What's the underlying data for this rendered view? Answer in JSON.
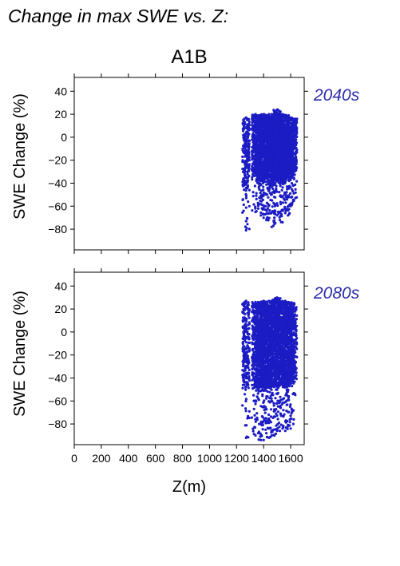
{
  "figure_title": "Change in max SWE vs. Z:",
  "scenario_title": "A1B",
  "x_axis_label": "Z(m)",
  "colors": {
    "points": "#1c1cc4",
    "tag": "#2b2baa"
  },
  "chart_data": [
    {
      "type": "scatter",
      "tag": "2040s",
      "ylabel": "SWE Change (%)",
      "xlabel": "",
      "xlim": [
        0,
        1700
      ],
      "ylim": [
        -98,
        52
      ],
      "x_ticks": [
        0,
        200,
        400,
        600,
        800,
        1000,
        1200,
        1400,
        1600
      ],
      "y_ticks": [
        -80,
        -60,
        -40,
        -20,
        0,
        20,
        40
      ],
      "y_tick_labels": [
        "−80",
        "−60",
        "−40",
        "−20",
        "0",
        "20",
        "40"
      ],
      "columns": [
        {
          "x": 1270,
          "ymin": -81,
          "ymax": 17
        },
        {
          "x": 1340,
          "ymin": -65,
          "ymax": 20
        },
        {
          "x": 1360,
          "ymin": -62,
          "ymax": 19
        },
        {
          "x": 1380,
          "ymin": -68,
          "ymax": 18
        },
        {
          "x": 1400,
          "ymin": -70,
          "ymax": 20
        },
        {
          "x": 1420,
          "ymin": -72,
          "ymax": 19
        },
        {
          "x": 1440,
          "ymin": -66,
          "ymax": 20
        },
        {
          "x": 1460,
          "ymin": -78,
          "ymax": 20
        },
        {
          "x": 1480,
          "ymin": -70,
          "ymax": 21
        },
        {
          "x": 1500,
          "ymin": -68,
          "ymax": 24
        },
        {
          "x": 1520,
          "ymin": -72,
          "ymax": 21
        },
        {
          "x": 1540,
          "ymin": -74,
          "ymax": 20
        },
        {
          "x": 1560,
          "ymin": -66,
          "ymax": 19
        },
        {
          "x": 1580,
          "ymin": -68,
          "ymax": 18
        },
        {
          "x": 1600,
          "ymin": -60,
          "ymax": 17
        },
        {
          "x": 1620,
          "ymin": -55,
          "ymax": 16
        }
      ],
      "points_per_column": 220
    },
    {
      "type": "scatter",
      "tag": "2080s",
      "ylabel": "SWE Change (%)",
      "xlabel": "Z(m)",
      "xlim": [
        0,
        1700
      ],
      "ylim": [
        -98,
        52
      ],
      "x_ticks": [
        0,
        200,
        400,
        600,
        800,
        1000,
        1200,
        1400,
        1600
      ],
      "x_tick_labels": [
        "0",
        "200",
        "400",
        "600",
        "800",
        "1000",
        "1200",
        "1400",
        "1600"
      ],
      "y_ticks": [
        -80,
        -60,
        -40,
        -20,
        0,
        20,
        40
      ],
      "y_tick_labels": [
        "−80",
        "−60",
        "−40",
        "−20",
        "0",
        "20",
        "40"
      ],
      "columns": [
        {
          "x": 1270,
          "ymin": -92,
          "ymax": 27
        },
        {
          "x": 1340,
          "ymin": -90,
          "ymax": 26
        },
        {
          "x": 1360,
          "ymin": -88,
          "ymax": 26
        },
        {
          "x": 1380,
          "ymin": -94,
          "ymax": 26
        },
        {
          "x": 1400,
          "ymin": -94,
          "ymax": 27
        },
        {
          "x": 1420,
          "ymin": -88,
          "ymax": 26
        },
        {
          "x": 1440,
          "ymin": -92,
          "ymax": 27
        },
        {
          "x": 1460,
          "ymin": -90,
          "ymax": 27
        },
        {
          "x": 1480,
          "ymin": -90,
          "ymax": 28
        },
        {
          "x": 1500,
          "ymin": -86,
          "ymax": 30
        },
        {
          "x": 1520,
          "ymin": -86,
          "ymax": 27
        },
        {
          "x": 1540,
          "ymin": -84,
          "ymax": 26
        },
        {
          "x": 1560,
          "ymin": -86,
          "ymax": 27
        },
        {
          "x": 1580,
          "ymin": -82,
          "ymax": 26
        },
        {
          "x": 1600,
          "ymin": -84,
          "ymax": 25
        },
        {
          "x": 1620,
          "ymin": -80,
          "ymax": 25
        }
      ],
      "points_per_column": 220
    }
  ]
}
